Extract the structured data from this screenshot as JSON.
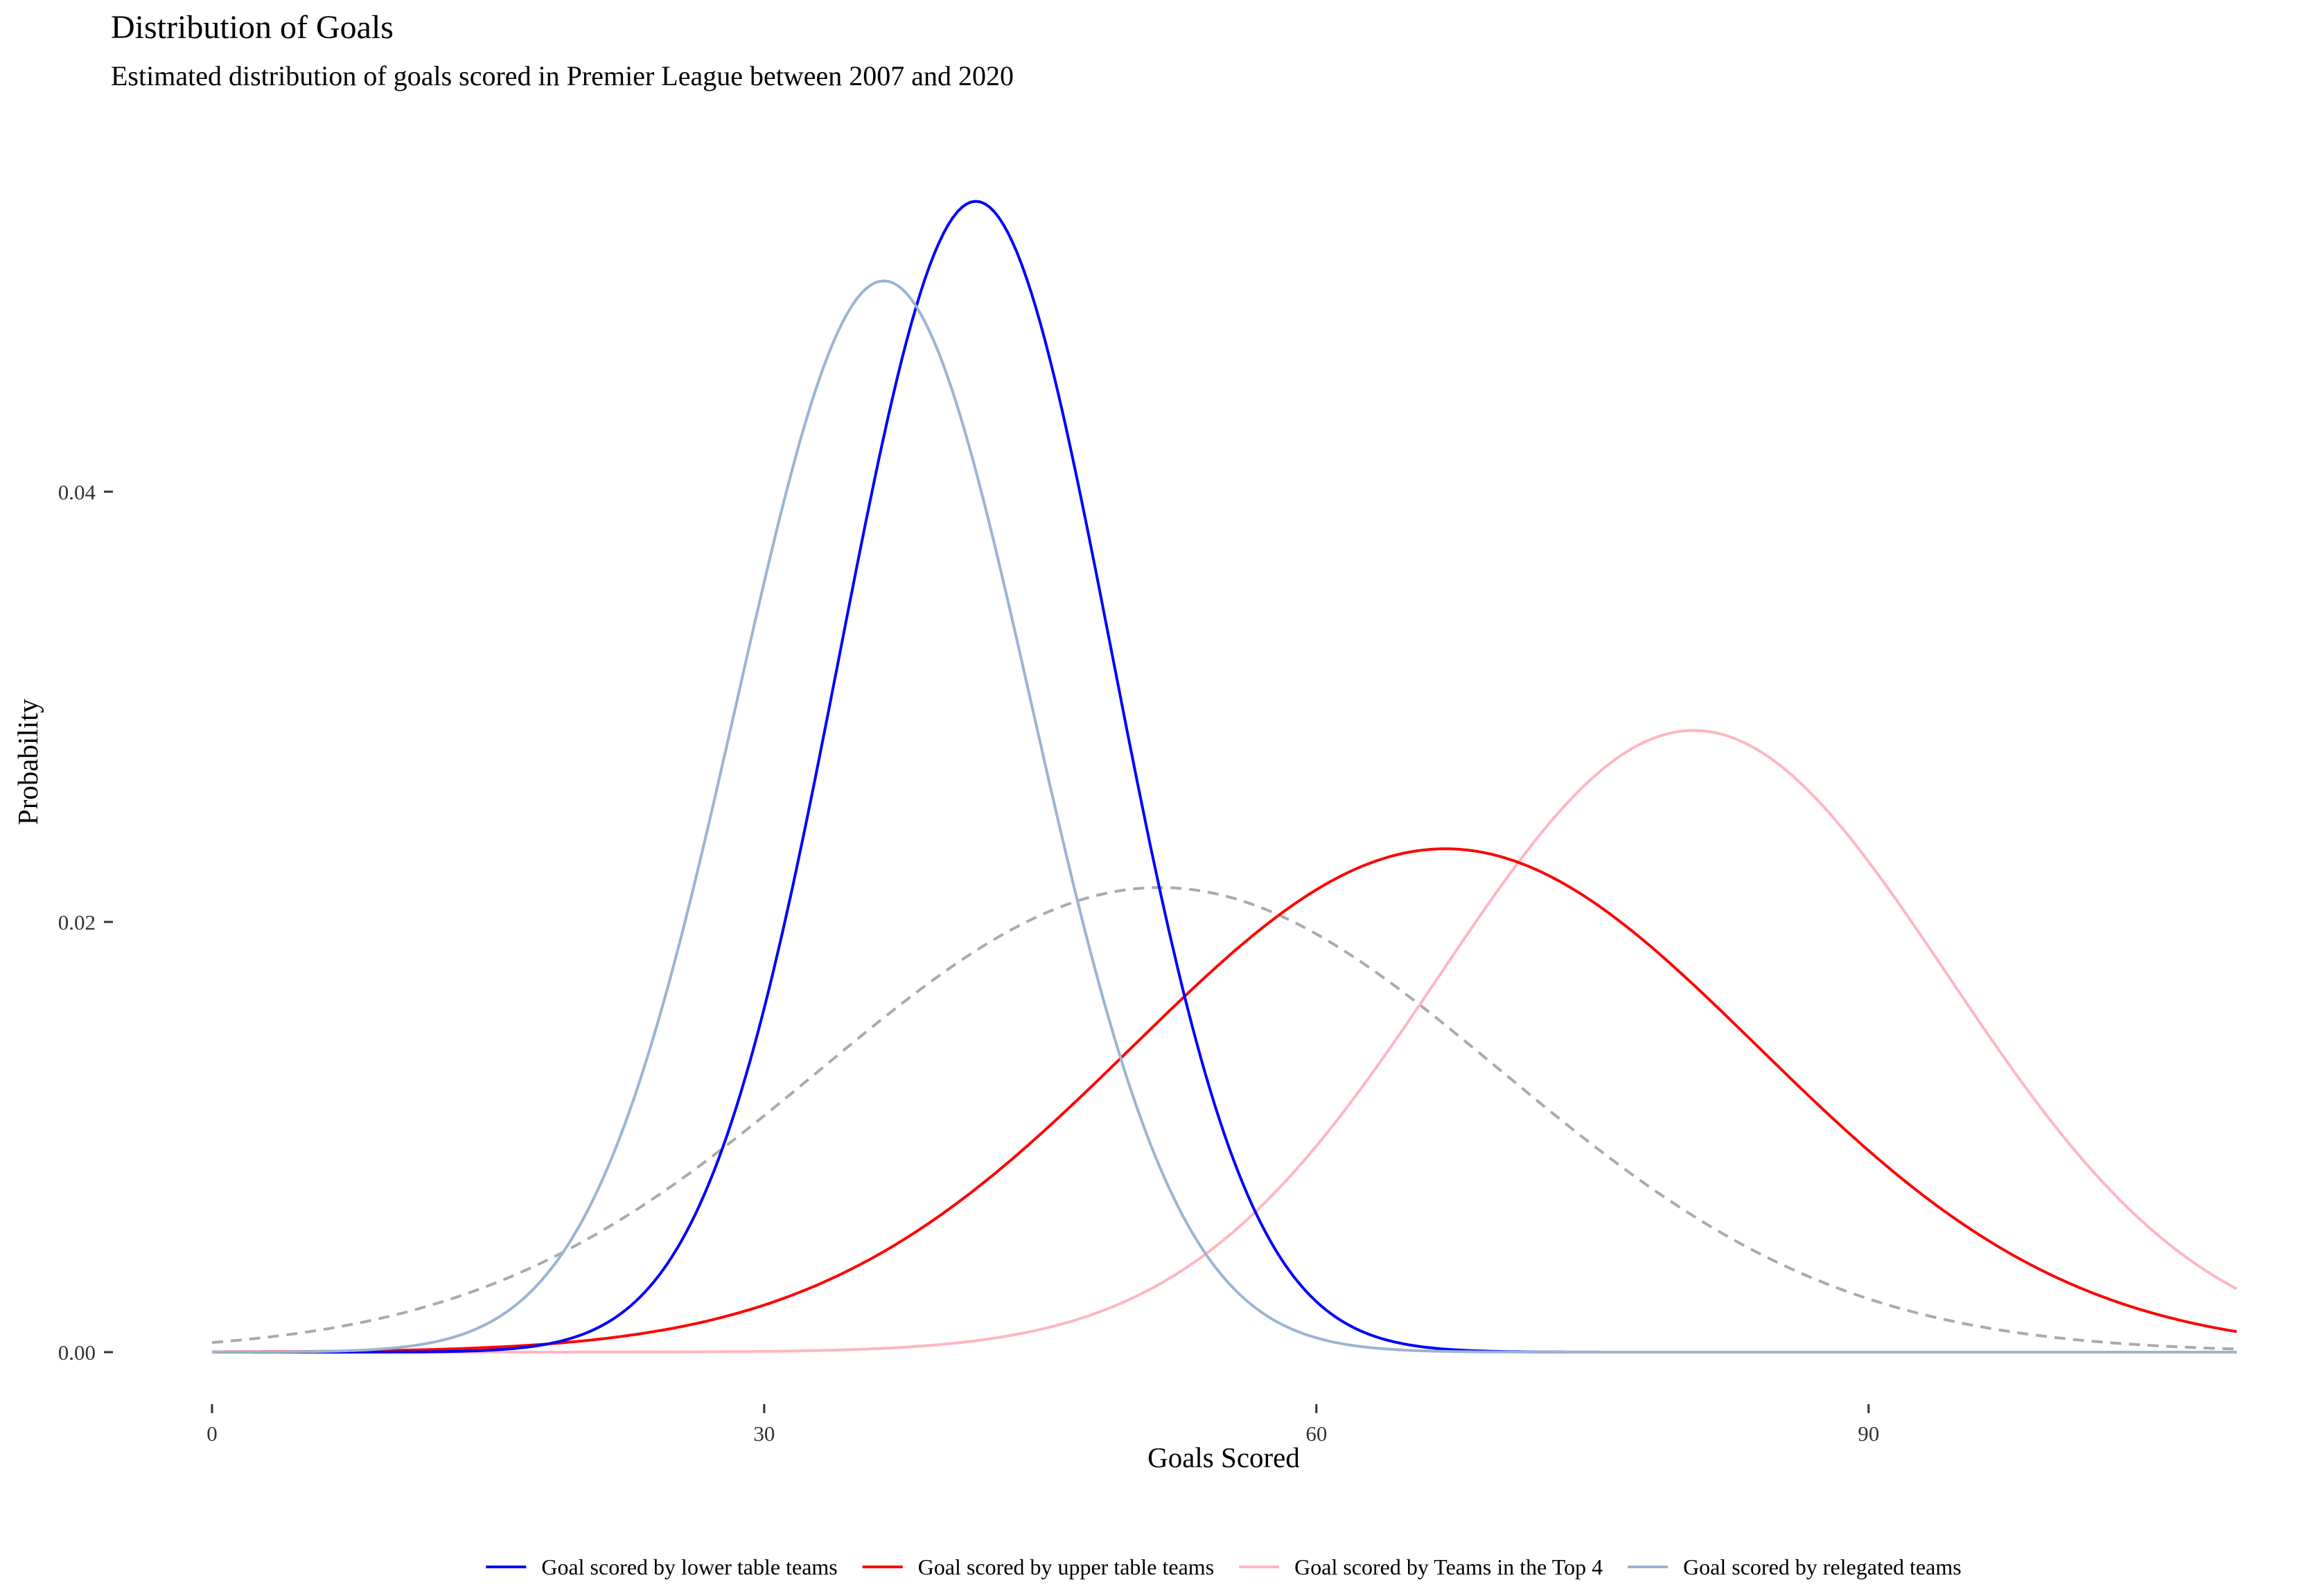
{
  "chart_data": {
    "type": "line",
    "title": "Distribution of Goals",
    "subtitle": "Estimated distribution of goals scored in Premier League between 2007 and 2020",
    "xlabel": "Goals Scored",
    "ylabel": "Probability",
    "xlim": [
      0,
      110
    ],
    "ylim": [
      0,
      0.055
    ],
    "x_ticks": [
      0,
      30,
      60,
      90
    ],
    "x_tick_labels": [
      "0",
      "30",
      "60",
      "90"
    ],
    "y_ticks": [
      0,
      0.02,
      0.04
    ],
    "y_tick_labels": [
      "0.00",
      "0.02",
      "0.04"
    ],
    "grid": false,
    "legend_position": "bottom",
    "series": [
      {
        "name": "Goal scored by lower table teams",
        "color": "#0000FF",
        "dash": "solid",
        "mean": 41.5,
        "sd": 7.4,
        "peak": 0.0535
      },
      {
        "name": "Goal scored by upper table teams",
        "color": "#FF0000",
        "dash": "solid",
        "mean": 67,
        "sd": 17,
        "peak": 0.0234
      },
      {
        "name": "Goal scored by Teams in the Top 4",
        "color": "#FFB6C1",
        "dash": "solid",
        "mean": 80.5,
        "sd": 13.8,
        "peak": 0.0289
      },
      {
        "name": "Goal scored by relegated teams",
        "color": "#9BB4D0",
        "dash": "solid",
        "mean": 36.5,
        "sd": 8.0,
        "peak": 0.0498
      },
      {
        "color": "#AAAAAA",
        "dash": "dashed",
        "mean": 51.5,
        "sd": 18.5,
        "peak": 0.0216
      }
    ]
  }
}
